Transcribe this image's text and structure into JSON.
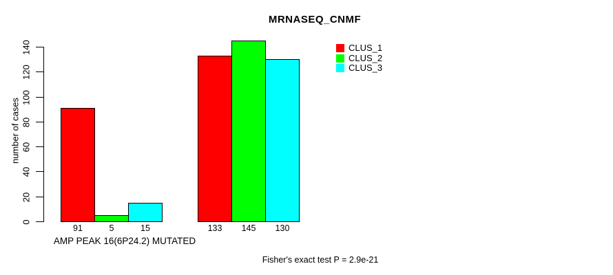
{
  "chart_data": {
    "type": "bar",
    "title": "MRNASEQ_CNMF",
    "ylabel": "number of cases",
    "xlabel": "AMP PEAK 16(6P24.2) MUTATED",
    "ylim": [
      0,
      140
    ],
    "yticks": [
      0,
      20,
      40,
      60,
      80,
      100,
      120,
      140
    ],
    "grid": false,
    "legend_position": "top-right",
    "series": [
      {
        "name": "CLUS_1",
        "color": "#ff0000",
        "values": [
          91,
          133
        ]
      },
      {
        "name": "CLUS_2",
        "color": "#00ff00",
        "values": [
          5,
          145
        ]
      },
      {
        "name": "CLUS_3",
        "color": "#00ffff",
        "values": [
          15,
          130
        ]
      }
    ],
    "groups": [
      {
        "label": "AMP PEAK 16(6P24.2) MUTATED",
        "values": [
          91,
          5,
          15
        ]
      },
      {
        "label": "",
        "values": [
          133,
          145,
          130
        ]
      }
    ],
    "annotation": "Fisher's exact test P = 2.9e-21"
  }
}
